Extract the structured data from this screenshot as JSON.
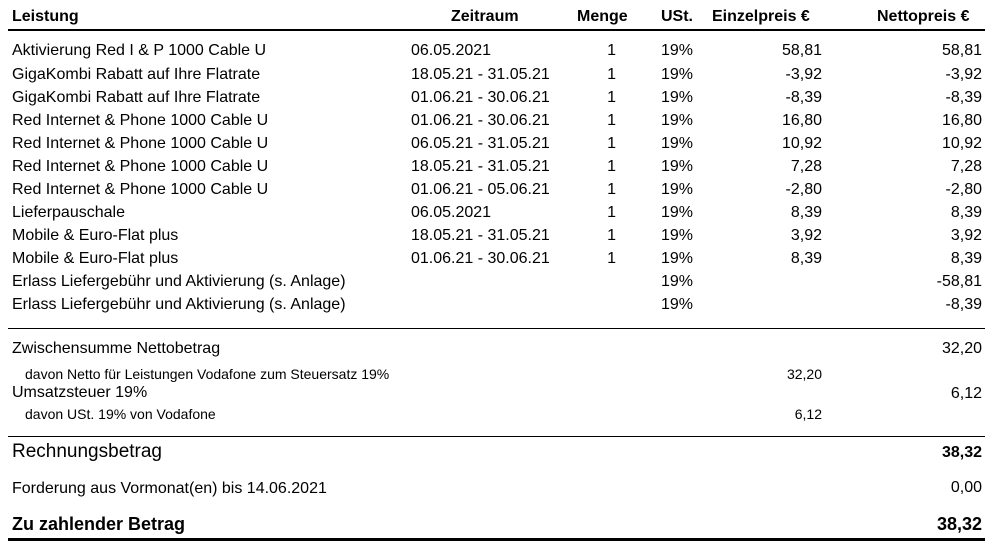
{
  "headers": {
    "leistung": "Leistung",
    "zeitraum": "Zeitraum",
    "menge": "Menge",
    "ust": "USt.",
    "einzelpreis": "Einzelpreis €",
    "nettopreis": "Nettopreis €"
  },
  "rows": [
    {
      "name": "Aktivierung Red I & P 1000 Cable U",
      "zeitraum": "06.05.2021",
      "menge": "1",
      "ust": "19%",
      "einzel": "58,81",
      "netto": "58,81"
    },
    {
      "name": "GigaKombi Rabatt auf Ihre Flatrate",
      "zeitraum": "18.05.21 - 31.05.21",
      "menge": "1",
      "ust": "19%",
      "einzel": "-3,92",
      "netto": "-3,92"
    },
    {
      "name": "GigaKombi Rabatt auf Ihre Flatrate",
      "zeitraum": "01.06.21 - 30.06.21",
      "menge": "1",
      "ust": "19%",
      "einzel": "-8,39",
      "netto": "-8,39"
    },
    {
      "name": "Red Internet & Phone 1000 Cable U",
      "zeitraum": "01.06.21 - 30.06.21",
      "menge": "1",
      "ust": "19%",
      "einzel": "16,80",
      "netto": "16,80"
    },
    {
      "name": "Red Internet & Phone 1000 Cable U",
      "zeitraum": "06.05.21 - 31.05.21",
      "menge": "1",
      "ust": "19%",
      "einzel": "10,92",
      "netto": "10,92"
    },
    {
      "name": "Red Internet & Phone 1000 Cable U",
      "zeitraum": "18.05.21 - 31.05.21",
      "menge": "1",
      "ust": "19%",
      "einzel": "7,28",
      "netto": "7,28"
    },
    {
      "name": "Red Internet & Phone 1000 Cable U",
      "zeitraum": "01.06.21 - 05.06.21",
      "menge": "1",
      "ust": "19%",
      "einzel": "-2,80",
      "netto": "-2,80"
    },
    {
      "name": "Lieferpauschale",
      "zeitraum": "06.05.2021",
      "menge": "1",
      "ust": "19%",
      "einzel": "8,39",
      "netto": "8,39"
    },
    {
      "name": "Mobile & Euro-Flat plus",
      "zeitraum": "18.05.21 - 31.05.21",
      "menge": "1",
      "ust": "19%",
      "einzel": "3,92",
      "netto": "3,92"
    },
    {
      "name": "Mobile & Euro-Flat plus",
      "zeitraum": "01.06.21 - 30.06.21",
      "menge": "1",
      "ust": "19%",
      "einzel": "8,39",
      "netto": "8,39"
    },
    {
      "name": "Erlass Liefergebühr und Aktivierung (s. Anlage)",
      "zeitraum": "",
      "menge": "",
      "ust": "19%",
      "einzel": "",
      "netto": "-58,81"
    },
    {
      "name": "Erlass Liefergebühr und Aktivierung (s. Anlage)",
      "zeitraum": "",
      "menge": "",
      "ust": "19%",
      "einzel": "",
      "netto": "-8,39"
    }
  ],
  "summary": {
    "zwischensumme_label": "Zwischensumme Nettobetrag",
    "zwischensumme_value": "32,20",
    "davon_netto_label": "davon Netto für Leistungen Vodafone zum Steuersatz 19%",
    "davon_netto_value": "32,20",
    "umsatzsteuer_label": "Umsatzsteuer 19%",
    "umsatzsteuer_value": "6,12",
    "davon_ust_label": "davon USt. 19% von Vodafone",
    "davon_ust_value": "6,12",
    "rechnungsbetrag_label": "Rechnungsbetrag",
    "rechnungsbetrag_value": "38,32",
    "forderung_label": "Forderung aus Vormonat(en) bis 14.06.2021",
    "forderung_value": "0,00",
    "zu_zahlen_label": "Zu zahlender Betrag",
    "zu_zahlen_value": "38,32"
  }
}
